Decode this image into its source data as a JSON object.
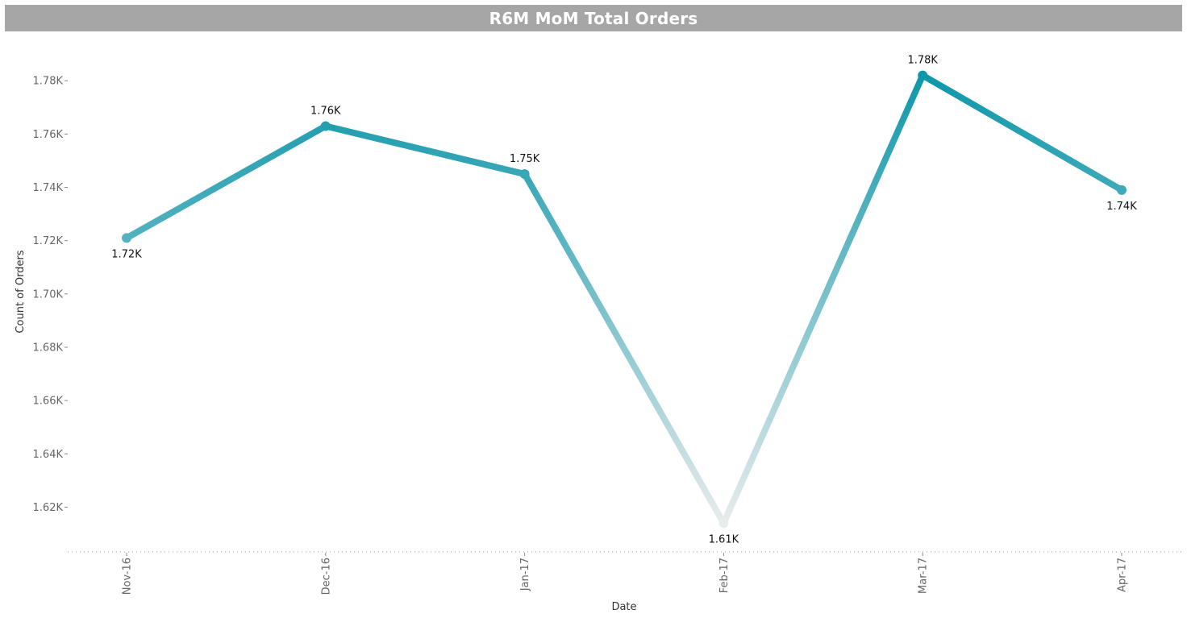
{
  "chart_data": {
    "type": "line",
    "title": "R6M MoM Total Orders",
    "xlabel": "Date",
    "ylabel": "Count of Orders",
    "categories": [
      "Nov-16",
      "Dec-16",
      "Jan-17",
      "Feb-17",
      "Mar-17",
      "Apr-17"
    ],
    "values": [
      1721,
      1763,
      1745,
      1614,
      1782,
      1739
    ],
    "data_labels": [
      "1.72K",
      "1.76K",
      "1.75K",
      "1.61K",
      "1.78K",
      "1.74K"
    ],
    "y_ticks": [
      1620,
      1640,
      1660,
      1680,
      1700,
      1720,
      1740,
      1760,
      1780
    ],
    "y_tick_labels": [
      "1.62K",
      "1.64K",
      "1.66K",
      "1.68K",
      "1.70K",
      "1.72K",
      "1.74K",
      "1.76K",
      "1.78K"
    ],
    "ylim": [
      1603.5,
      1797
    ],
    "grid": false,
    "legend": "none",
    "colors": {
      "high": "#0e97aa",
      "low": "#e8ecec",
      "title_bar": "#a6a6a6"
    }
  }
}
